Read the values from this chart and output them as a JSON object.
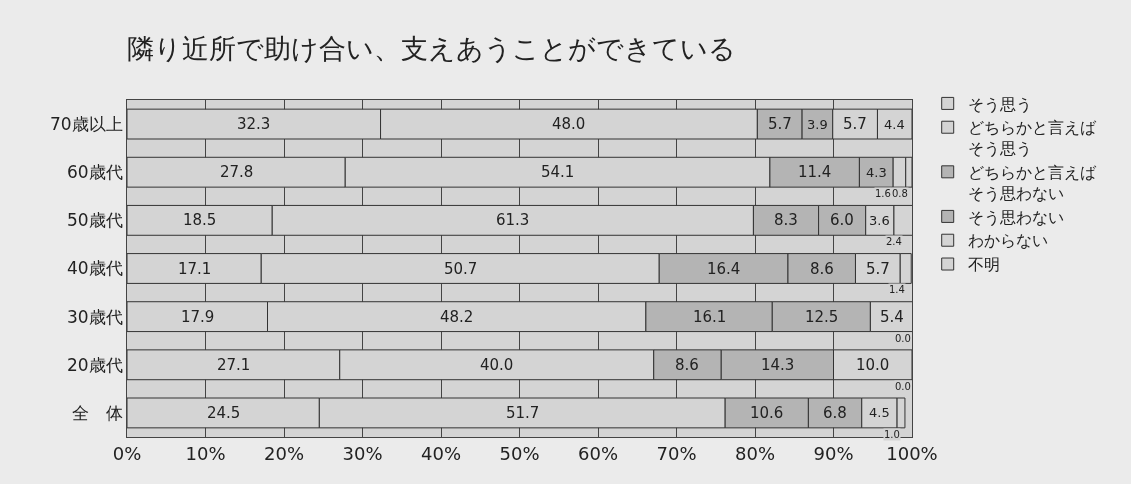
{
  "chart_data": {
    "type": "bar",
    "orientation": "horizontal",
    "stacked": true,
    "title": "隣り近所で助け合い、支えあうことができている",
    "categories": [
      "70歳以上",
      "60歳代",
      "50歳代",
      "40歳代",
      "30歳代",
      "20歳代",
      "全　体"
    ],
    "xlim": [
      0,
      100
    ],
    "xticks": [
      {
        "value": 0,
        "label": "0%"
      },
      {
        "value": 10,
        "label": "10%"
      },
      {
        "value": 20,
        "label": "20%"
      },
      {
        "value": 30,
        "label": "30%"
      },
      {
        "value": 40,
        "label": "40%"
      },
      {
        "value": 50,
        "label": "50%"
      },
      {
        "value": 60,
        "label": "60%"
      },
      {
        "value": 70,
        "label": "70%"
      },
      {
        "value": 80,
        "label": "80%"
      },
      {
        "value": 90,
        "label": "90%"
      },
      {
        "value": 100,
        "label": "100%"
      }
    ],
    "grid": "x",
    "legend": "right",
    "series": [
      {
        "name": "そう思う",
        "color": "#d4d4d4",
        "values": [
          32.3,
          27.8,
          18.5,
          17.1,
          17.9,
          27.1,
          24.5
        ],
        "value_labels": [
          "32.3",
          "27.8",
          "18.5",
          "17.1",
          "17.9",
          "27.1",
          "24.5"
        ]
      },
      {
        "name": "どちらかと言えばそう思う",
        "color": "#d4d4d4",
        "values": [
          48.0,
          54.1,
          61.3,
          50.7,
          48.2,
          40.0,
          51.7
        ],
        "value_labels": [
          "48.0",
          "54.1",
          "61.3",
          "50.7",
          "48.2",
          "40.0",
          "51.7"
        ]
      },
      {
        "name": "どちらかと言えばそう思わない",
        "color": "#b4b4b4",
        "values": [
          5.7,
          11.4,
          8.3,
          16.4,
          16.1,
          8.6,
          10.6
        ],
        "value_labels": [
          "5.7",
          "11.4",
          "8.3",
          "16.4",
          "16.1",
          "8.6",
          "10.6"
        ]
      },
      {
        "name": "そう思わない",
        "color": "#b4b4b4",
        "values": [
          3.9,
          4.3,
          6.0,
          8.6,
          12.5,
          14.3,
          6.8
        ],
        "value_labels": [
          "3.9",
          "4.3",
          "6.0",
          "8.6",
          "12.5",
          "14.3",
          "6.8"
        ]
      },
      {
        "name": "わからない",
        "color": "#d4d4d4",
        "values": [
          5.7,
          1.6,
          3.6,
          5.7,
          5.4,
          10.0,
          4.5
        ],
        "value_labels": [
          "5.7",
          "1.6",
          "3.6",
          "5.7",
          "5.4",
          "10.0",
          "4.5"
        ]
      },
      {
        "name": "不明",
        "color": "#d4d4d4",
        "values": [
          4.4,
          0.8,
          2.4,
          1.4,
          0.0,
          0.0,
          1.0
        ],
        "value_labels": [
          "4.4",
          "0.8",
          "2.4",
          "1.4",
          "0.0",
          "0.0",
          "1.0"
        ]
      }
    ]
  }
}
